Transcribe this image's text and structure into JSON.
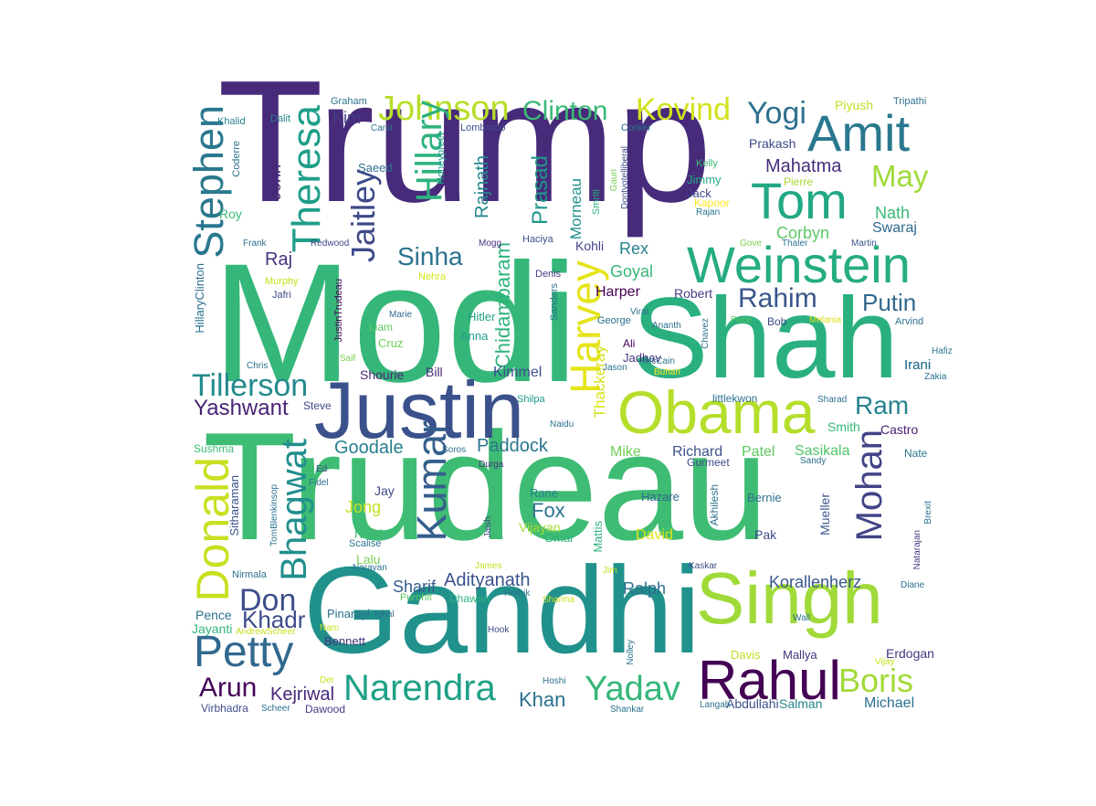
{
  "words": [
    {
      "text": "Trump",
      "color": "#472a7a"
    },
    {
      "text": "Modi",
      "color": "#35b779"
    },
    {
      "text": "Trudeau",
      "color": "#3fbc73"
    },
    {
      "text": "Gandhi",
      "color": "#21918c"
    },
    {
      "text": "Shah",
      "color": "#2ab07f"
    },
    {
      "text": "Justin",
      "color": "#3b518b"
    },
    {
      "text": "Singh",
      "color": "#a0da39"
    },
    {
      "text": "Obama",
      "color": "#b5de2b"
    },
    {
      "text": "Weinstein",
      "color": "#25ac82"
    },
    {
      "text": "Rahul",
      "color": "#440154"
    },
    {
      "text": "Amit",
      "color": "#2a788e"
    },
    {
      "text": "Tom",
      "color": "#22a884"
    },
    {
      "text": "Petty",
      "color": "#31688e"
    },
    {
      "text": "Narendra",
      "color": "#1fa187"
    },
    {
      "text": "Yadav",
      "color": "#35b779"
    },
    {
      "text": "Boris",
      "color": "#a2da37"
    },
    {
      "text": "Johnson",
      "color": "#b8de29"
    },
    {
      "text": "Kovind",
      "color": "#d2e21b"
    },
    {
      "text": "Clinton",
      "color": "#3aba76"
    },
    {
      "text": "Yogi",
      "color": "#2d708e"
    },
    {
      "text": "Donald",
      "color": "#c8e020"
    },
    {
      "text": "Kumar",
      "color": "#355f8d"
    },
    {
      "text": "Harvey",
      "color": "#e5e419"
    },
    {
      "text": "Tillerson",
      "color": "#238a8d"
    },
    {
      "text": "Theresa",
      "color": "#1f9e89"
    },
    {
      "text": "Stephen",
      "color": "#2a788e"
    },
    {
      "text": "May",
      "color": "#a0da39"
    },
    {
      "text": "Bhagwat",
      "color": "#218f8d"
    },
    {
      "text": "Mohan",
      "color": "#414487"
    },
    {
      "text": "Hillary",
      "color": "#2db27d"
    },
    {
      "text": "Jaitley",
      "color": "#3e4a89"
    },
    {
      "text": "Sinha",
      "color": "#2c728e"
    },
    {
      "text": "Rahim",
      "color": "#39568c"
    },
    {
      "text": "Putin",
      "color": "#31688e"
    },
    {
      "text": "Ram",
      "color": "#26828e"
    },
    {
      "text": "Don",
      "color": "#3d4e8a"
    },
    {
      "text": "Arun",
      "color": "#450559"
    },
    {
      "text": "Yashwant",
      "color": "#482475"
    },
    {
      "text": "Justin",
      "color": "#3b518b"
    },
    {
      "text": "Khan",
      "color": "#2c728e"
    },
    {
      "text": "Adityanath",
      "color": "#3b528b"
    },
    {
      "text": "Paddock",
      "color": "#2a768e"
    },
    {
      "text": "Goodale",
      "color": "#277f8e"
    },
    {
      "text": "Khadr",
      "color": "#3e4c8a"
    },
    {
      "text": "Mahatma",
      "color": "#472d7b"
    },
    {
      "text": "Prasad",
      "color": "#1f968b"
    },
    {
      "text": "Rajnath",
      "color": "#24878e"
    },
    {
      "text": "Chidambaram",
      "color": "#2eb37c"
    },
    {
      "text": "Corbyn",
      "color": "#5cc863"
    },
    {
      "text": "Goyal",
      "color": "#35b779"
    },
    {
      "text": "Rex",
      "color": "#26828e"
    },
    {
      "text": "Sasikala",
      "color": "#52c569"
    },
    {
      "text": "Kejriwal",
      "color": "#482878"
    },
    {
      "text": "Fox",
      "color": "#2b758e"
    },
    {
      "text": "Sharif",
      "color": "#365c8d"
    },
    {
      "text": "Jong",
      "color": "#c5e021"
    },
    {
      "text": "Korallenherz",
      "color": "#39568c"
    },
    {
      "text": "Ralph",
      "color": "#2d708e"
    },
    {
      "text": "Michael",
      "color": "#2d708e"
    },
    {
      "text": "Raj",
      "color": "#46327e"
    },
    {
      "text": "Kimmel",
      "color": "#3d4e8a"
    },
    {
      "text": "Kim",
      "color": "#433e85"
    },
    {
      "text": "Prakash",
      "color": "#3e4989"
    },
    {
      "text": "Nath",
      "color": "#3aba76"
    },
    {
      "text": "Swaraj",
      "color": "#31688e"
    },
    {
      "text": "Harper",
      "color": "#440154"
    },
    {
      "text": "Robert",
      "color": "#433e85"
    },
    {
      "text": "Mike",
      "color": "#6ece58"
    },
    {
      "text": "Richard",
      "color": "#3b528b"
    },
    {
      "text": "Patel",
      "color": "#5ec962"
    },
    {
      "text": "Castro",
      "color": "#481f70"
    },
    {
      "text": "Smith",
      "color": "#35b779"
    },
    {
      "text": "Irani",
      "color": "#2c728e"
    },
    {
      "text": "Erdogan",
      "color": "#453781"
    },
    {
      "text": "Salman",
      "color": "#25858e"
    },
    {
      "text": "Abdullahi",
      "color": "#3b528b"
    },
    {
      "text": "Kohli",
      "color": "#404688"
    },
    {
      "text": "Jimmy",
      "color": "#22a884"
    },
    {
      "text": "Jack",
      "color": "#404688"
    },
    {
      "text": "Thackeray",
      "color": "#d8e219"
    },
    {
      "text": "Hitler",
      "color": "#1fa187"
    },
    {
      "text": "Shourie",
      "color": "#482878"
    },
    {
      "text": "Bill",
      "color": "#482878"
    },
    {
      "text": "Cruz",
      "color": "#6ece58"
    },
    {
      "text": "Liam",
      "color": "#5ec962"
    },
    {
      "text": "Anna",
      "color": "#1f9e89"
    },
    {
      "text": "Nitish",
      "color": "#3aba76"
    },
    {
      "text": "Jay",
      "color": "#3e4a89"
    },
    {
      "text": "Lalu",
      "color": "#7ad151"
    },
    {
      "text": "Vijayan",
      "color": "#a8db34"
    },
    {
      "text": "Omar",
      "color": "#2db27d"
    },
    {
      "text": "Rane",
      "color": "#26828e"
    },
    {
      "text": "David",
      "color": "#dde318"
    },
    {
      "text": "Hazare",
      "color": "#31688e"
    },
    {
      "text": "Bernie",
      "color": "#2d708e"
    },
    {
      "text": "Pak",
      "color": "#3e4a89"
    },
    {
      "text": "Mueller",
      "color": "#3b528b"
    },
    {
      "text": "Sitharaman",
      "color": "#3b528b"
    },
    {
      "text": "Pinarayi",
      "color": "#2c728e"
    },
    {
      "text": "Bennett",
      "color": "#46327e"
    },
    {
      "text": "Mallya",
      "color": "#46327e"
    },
    {
      "text": "Davis",
      "color": "#c0df25"
    },
    {
      "text": "Pence",
      "color": "#2c728e"
    },
    {
      "text": "Jayanti",
      "color": "#35b779"
    },
    {
      "text": "Dawood",
      "color": "#433e85"
    },
    {
      "text": "Virbhadra",
      "color": "#3e4a89"
    },
    {
      "text": "Roy",
      "color": "#3aba76"
    },
    {
      "text": "John",
      "color": "#482878"
    },
    {
      "text": "Morneau",
      "color": "#21918c"
    },
    {
      "text": "Irani",
      "color": "#2c728e"
    },
    {
      "text": "Sushma",
      "color": "#3aba76"
    },
    {
      "text": "Nate",
      "color": "#2a788e"
    },
    {
      "text": "Piyush",
      "color": "#bddf26"
    },
    {
      "text": "Tripathi",
      "color": "#2d708e"
    },
    {
      "text": "Graham",
      "color": "#2c728e"
    },
    {
      "text": "Dalit",
      "color": "#26828e"
    },
    {
      "text": "Khalid",
      "color": "#26828e"
    },
    {
      "text": "Carol",
      "color": "#2d708e"
    },
    {
      "text": "Lombardo",
      "color": "#3e4c8a"
    },
    {
      "text": "Corker",
      "color": "#2c728e"
    },
    {
      "text": "Saeed",
      "color": "#2d708e"
    },
    {
      "text": "Coderre",
      "color": "#2c728e"
    },
    {
      "text": "Honeypreet",
      "color": "#1f9a8a"
    },
    {
      "text": "Kelly",
      "color": "#3fbc73"
    },
    {
      "text": "Kapoor",
      "color": "#fde725"
    },
    {
      "text": "Pierre",
      "color": "#a8db34"
    },
    {
      "text": "Rajan",
      "color": "#2c728e"
    },
    {
      "text": "Smriti",
      "color": "#2db27d"
    },
    {
      "text": "Gauri",
      "color": "#75d054"
    },
    {
      "text": "Dontvotelliberal",
      "color": "#3e4a89"
    },
    {
      "text": "Frank",
      "color": "#2d708e"
    },
    {
      "text": "Redwood",
      "color": "#3e4a89"
    },
    {
      "text": "Mogg",
      "color": "#46327e"
    },
    {
      "text": "Haciya",
      "color": "#3e4c8a"
    },
    {
      "text": "Gove",
      "color": "#7ad151"
    },
    {
      "text": "Thaler",
      "color": "#2c728e"
    },
    {
      "text": "Martin",
      "color": "#3b528b"
    },
    {
      "text": "Nehra",
      "color": "#d8e219"
    },
    {
      "text": "Murphy",
      "color": "#c8e020"
    },
    {
      "text": "Jafri",
      "color": "#3e4a89"
    },
    {
      "text": "Denis",
      "color": "#443a83"
    },
    {
      "text": "Sanders",
      "color": "#2c728e"
    },
    {
      "text": "HillaryClinton",
      "color": "#2d708e"
    },
    {
      "text": "JustinTrudeau",
      "color": "#440154"
    },
    {
      "text": "Marie",
      "color": "#31688e"
    },
    {
      "text": "Virat",
      "color": "#2c728e"
    },
    {
      "text": "George",
      "color": "#2d708e"
    },
    {
      "text": "Price",
      "color": "#5ec962"
    },
    {
      "text": "Bob",
      "color": "#3e4a89"
    },
    {
      "text": "Melania",
      "color": "#d8e219"
    },
    {
      "text": "Arvind",
      "color": "#2c728e"
    },
    {
      "text": "Ali",
      "color": "#440154"
    },
    {
      "text": "Jadhav",
      "color": "#46327e"
    },
    {
      "text": "Ananth",
      "color": "#2d708e"
    },
    {
      "text": "Chavez",
      "color": "#2d708e"
    },
    {
      "text": "Hafiz",
      "color": "#2c728e"
    },
    {
      "text": "Chris",
      "color": "#2d708e"
    },
    {
      "text": "Saif",
      "color": "#7ad151"
    },
    {
      "text": "Jason",
      "color": "#2c728e"
    },
    {
      "text": "McCain",
      "color": "#2c728e"
    },
    {
      "text": "Buhari",
      "color": "#fde725"
    },
    {
      "text": "Zakia",
      "color": "#2c728e"
    },
    {
      "text": "Steve",
      "color": "#3e4a89"
    },
    {
      "text": "Shilpa",
      "color": "#1f9e89"
    },
    {
      "text": "littlekwon",
      "color": "#2c728e"
    },
    {
      "text": "Sharad",
      "color": "#2c728e"
    },
    {
      "text": "Naidu",
      "color": "#2c728e"
    },
    {
      "text": "Soros",
      "color": "#2c728e"
    },
    {
      "text": "Durga",
      "color": "#46327e"
    },
    {
      "text": "Gurmeet",
      "color": "#3e4a89"
    },
    {
      "text": "Sandy",
      "color": "#2c728e"
    },
    {
      "text": "Ed",
      "color": "#3e4a89"
    },
    {
      "text": "Fidel",
      "color": "#2d708e"
    },
    {
      "text": "TomBlenkinsop",
      "color": "#2c728e"
    },
    {
      "text": "Jaish",
      "color": "#3e4a89"
    },
    {
      "text": "Akhilesh",
      "color": "#2d708e"
    },
    {
      "text": "Natarajan",
      "color": "#46327e"
    },
    {
      "text": "Brexit",
      "color": "#2c728e"
    },
    {
      "text": "Scalise",
      "color": "#2c728e"
    },
    {
      "text": "Narayan",
      "color": "#2c728e"
    },
    {
      "text": "James",
      "color": "#c8e020"
    },
    {
      "text": "Jim",
      "color": "#c8e020"
    },
    {
      "text": "Kaskar",
      "color": "#3e4a89"
    },
    {
      "text": "Nirmala",
      "color": "#2c728e"
    },
    {
      "text": "Diane",
      "color": "#2c728e"
    },
    {
      "text": "Purohit",
      "color": "#5ec962"
    },
    {
      "text": "Dhawan",
      "color": "#2db27d"
    },
    {
      "text": "Hrithik",
      "color": "#2d708e"
    },
    {
      "text": "Sharma",
      "color": "#c8e020"
    },
    {
      "text": "Iqbal",
      "color": "#2c728e"
    },
    {
      "text": "Nam",
      "color": "#c8e020"
    },
    {
      "text": "AndrewScheer",
      "color": "#c8e020"
    },
    {
      "text": "Wall",
      "color": "#2c728e"
    },
    {
      "text": "Hook",
      "color": "#3e4a89"
    },
    {
      "text": "Nolley",
      "color": "#2c728e"
    },
    {
      "text": "Vijay",
      "color": "#c8e020"
    },
    {
      "text": "Der",
      "color": "#c8e020"
    },
    {
      "text": "Hoshi",
      "color": "#2d708e"
    },
    {
      "text": "Scheer",
      "color": "#2c728e"
    },
    {
      "text": "Shankar",
      "color": "#2c728e"
    },
    {
      "text": "Langah",
      "color": "#2c728e"
    },
    {
      "text": "Mattis",
      "color": "#2db27d"
    }
  ]
}
